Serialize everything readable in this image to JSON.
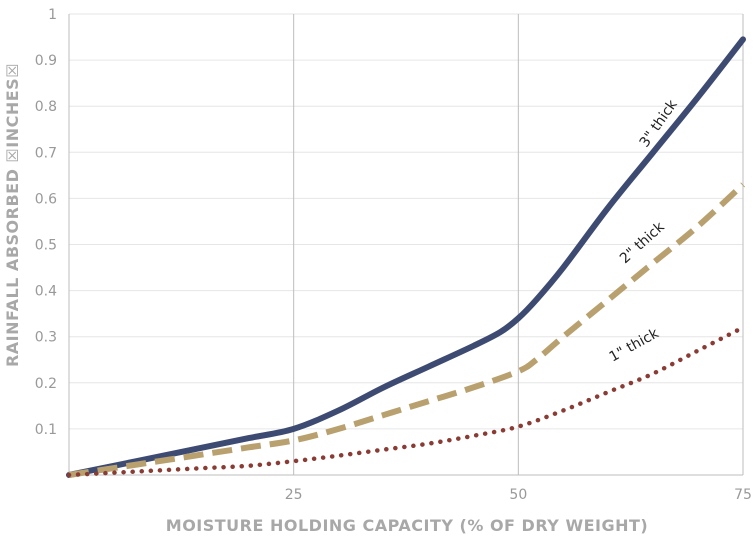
{
  "chart_data": {
    "type": "line",
    "xlabel": "MOISTURE HOLDING CAPACITY (% OF DRY WEIGHT)",
    "ylabel": "RAINFALL ABSORBED ☒INCHES☒",
    "xlim": [
      0,
      75
    ],
    "ylim": [
      0,
      1
    ],
    "x_ticks": [
      25,
      50,
      75
    ],
    "y_ticks": [
      0.1,
      0.2,
      0.3,
      0.4,
      0.5,
      0.6,
      0.7,
      0.8,
      0.9,
      1
    ],
    "grid": "horizontal",
    "series": [
      {
        "name": "3\" thick",
        "color": "#3d4b72",
        "style": "solid",
        "x": [
          0,
          5,
          10,
          15,
          20,
          25,
          30,
          35,
          40,
          45,
          48,
          50,
          52,
          55,
          60,
          65,
          70,
          75
        ],
        "values": [
          0,
          0.02,
          0.04,
          0.06,
          0.08,
          0.1,
          0.14,
          0.19,
          0.235,
          0.28,
          0.31,
          0.34,
          0.38,
          0.45,
          0.58,
          0.7,
          0.82,
          0.945
        ]
      },
      {
        "name": "2\" thick",
        "color": "#b9a06f",
        "style": "dashed",
        "x": [
          0,
          5,
          10,
          15,
          20,
          25,
          30,
          35,
          40,
          45,
          50,
          52,
          55,
          60,
          65,
          70,
          75
        ],
        "values": [
          0,
          0.015,
          0.03,
          0.045,
          0.06,
          0.075,
          0.1,
          0.13,
          0.16,
          0.19,
          0.225,
          0.25,
          0.3,
          0.38,
          0.46,
          0.54,
          0.63
        ]
      },
      {
        "name": "1\" thick",
        "color": "#8a3c34",
        "style": "dotted",
        "x": [
          0,
          5,
          10,
          15,
          20,
          25,
          30,
          35,
          40,
          45,
          50,
          55,
          60,
          65,
          70,
          75
        ],
        "values": [
          0,
          0.005,
          0.01,
          0.015,
          0.02,
          0.03,
          0.042,
          0.055,
          0.068,
          0.085,
          0.105,
          0.14,
          0.18,
          0.22,
          0.27,
          0.32
        ]
      }
    ]
  }
}
